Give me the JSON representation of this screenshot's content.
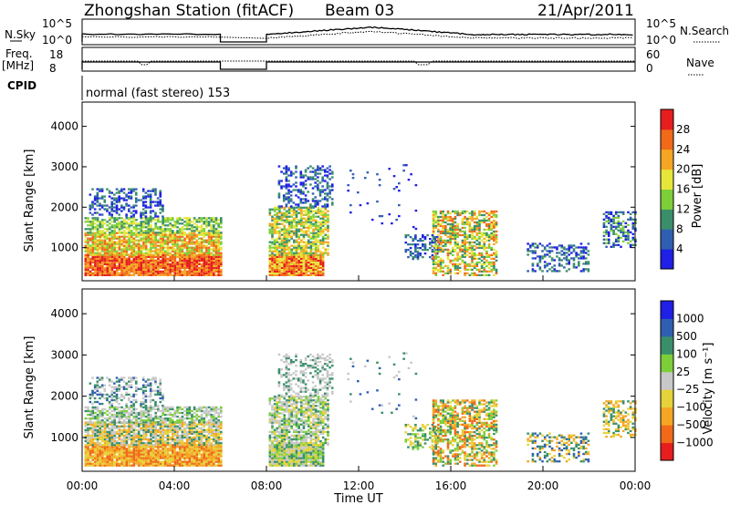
{
  "header": {
    "title": "Zhongshan Station (fitACF)",
    "beam": "Beam 03",
    "date": "21/Apr/2011"
  },
  "params": {
    "nsky_label": "N.Sky",
    "nsearch_label": "N.Search",
    "freq_label_top": "Freq.",
    "freq_label_bottom": "[MHz]",
    "nave_label": "Nave",
    "cpid_label": "CPID",
    "cpid_text": "normal (fast stereo) 153",
    "noise_ticks": [
      "10^5",
      "10^0"
    ],
    "freq_ticks": [
      "18",
      "8"
    ],
    "nave_ticks": [
      "60",
      "0"
    ]
  },
  "colors": {
    "power": [
      "#1f1fe6",
      "#2f5fb0",
      "#3a8f6a",
      "#7ccf3a",
      "#e6e63a",
      "#f5a623",
      "#f06a1a",
      "#e61e1e"
    ],
    "velocity": [
      "#e61e1e",
      "#f06a1a",
      "#f5a623",
      "#e6d23a",
      "#c8c8c8",
      "#7ccf3a",
      "#3a8f6a",
      "#2f5fb0",
      "#1f1fe6"
    ]
  },
  "chart_data": [
    {
      "type": "heatmap",
      "name": "power",
      "ylabel": "Slant Range [km]",
      "ylim": [
        180,
        4600
      ],
      "yticks": [
        1000,
        2000,
        3000,
        4000
      ],
      "xlim": [
        0,
        24
      ],
      "colorbar": {
        "label": "Power [dB]",
        "range": [
          0,
          32
        ],
        "ticks": [
          "4",
          "8",
          "12",
          "16",
          "20",
          "24",
          "28"
        ],
        "tick_values": [
          4,
          8,
          12,
          16,
          20,
          24,
          28
        ]
      }
    },
    {
      "type": "heatmap",
      "name": "velocity",
      "ylabel": "Slant Range [km]",
      "ylim": [
        180,
        4600
      ],
      "yticks": [
        1000,
        2000,
        3000,
        4000
      ],
      "xlim": [
        0,
        24
      ],
      "xlabel": "Time UT",
      "xticks": [
        "00:00",
        "04:00",
        "08:00",
        "12:00",
        "16:00",
        "20:00",
        "00:00"
      ],
      "xtick_values": [
        0,
        4,
        8,
        12,
        16,
        20,
        24
      ],
      "colorbar": {
        "label": "Velocity [m s⁻¹]",
        "ticks": [
          "1000",
          "500",
          "100",
          "25",
          "−25",
          "−100",
          "−500",
          "−1000"
        ]
      }
    }
  ]
}
